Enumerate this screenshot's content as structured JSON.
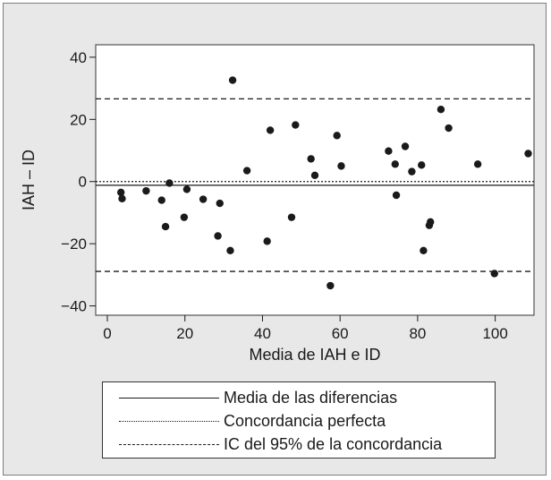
{
  "chart_data": {
    "type": "scatter",
    "title": "",
    "xlabel": "Media de IAH e ID",
    "ylabel": "IAH – ID",
    "xlim": [
      -3,
      110
    ],
    "ylim": [
      -43,
      44
    ],
    "x_ticks": [
      0,
      20,
      40,
      60,
      80,
      100
    ],
    "y_ticks": [
      -40,
      -20,
      0,
      20,
      40
    ],
    "x_tick_labels": [
      "0",
      "20",
      "40",
      "60",
      "80",
      "100"
    ],
    "y_tick_labels": [
      "−40",
      "−20",
      "0",
      "20",
      "40"
    ],
    "points": [
      {
        "x": 3.5,
        "y": -3.5
      },
      {
        "x": 3.8,
        "y": -5.5
      },
      {
        "x": 10,
        "y": -3
      },
      {
        "x": 14,
        "y": -6
      },
      {
        "x": 15,
        "y": -14.5
      },
      {
        "x": 16,
        "y": -0.5
      },
      {
        "x": 19.8,
        "y": -11.5
      },
      {
        "x": 20.5,
        "y": -2.5
      },
      {
        "x": 24.7,
        "y": -5.7
      },
      {
        "x": 28.5,
        "y": -17.5
      },
      {
        "x": 29,
        "y": -7
      },
      {
        "x": 31.7,
        "y": -22.2
      },
      {
        "x": 32.3,
        "y": 32.6
      },
      {
        "x": 36,
        "y": 3.5
      },
      {
        "x": 41.2,
        "y": -19.2
      },
      {
        "x": 42,
        "y": 16.5
      },
      {
        "x": 47.5,
        "y": -11.5
      },
      {
        "x": 48.5,
        "y": 18.2
      },
      {
        "x": 52.5,
        "y": 7.3
      },
      {
        "x": 53.5,
        "y": 2
      },
      {
        "x": 57.5,
        "y": -33.5
      },
      {
        "x": 59.2,
        "y": 14.8
      },
      {
        "x": 60.3,
        "y": 5
      },
      {
        "x": 72.5,
        "y": 9.8
      },
      {
        "x": 74.2,
        "y": 5.6
      },
      {
        "x": 74.5,
        "y": -4.4
      },
      {
        "x": 76.8,
        "y": 11.3
      },
      {
        "x": 78.5,
        "y": 3.2
      },
      {
        "x": 81,
        "y": 5.3
      },
      {
        "x": 81.5,
        "y": -22.2
      },
      {
        "x": 83,
        "y": -14.1
      },
      {
        "x": 83.3,
        "y": -13
      },
      {
        "x": 86,
        "y": 23.2
      },
      {
        "x": 88,
        "y": 17.2
      },
      {
        "x": 95.5,
        "y": 5.6
      },
      {
        "x": 99.8,
        "y": -29.6
      },
      {
        "x": 108.5,
        "y": 9
      }
    ],
    "reference_lines": [
      {
        "name": "Media de las diferencias",
        "y": -1.2,
        "style": "solid"
      },
      {
        "name": "Concordancia perfecta",
        "y": 0,
        "style": "dotted"
      },
      {
        "name": "IC del 95% de la concordancia",
        "y": 26.6,
        "style": "dashed"
      },
      {
        "name": "IC del 95% de la concordancia",
        "y": -28.9,
        "style": "dashed"
      }
    ],
    "legend_placement": "bottom",
    "grid": false
  },
  "legend": {
    "items": [
      {
        "label": "Media de las diferencias",
        "style": "solid"
      },
      {
        "label": "Concordancia perfecta",
        "style": "dotted"
      },
      {
        "label": "IC del 95% de la concordancia",
        "style": "dashed"
      }
    ]
  },
  "colors": {
    "background": "#e8e8e8",
    "plot_area": "#ffffff",
    "ink": "#1a1a1a"
  }
}
